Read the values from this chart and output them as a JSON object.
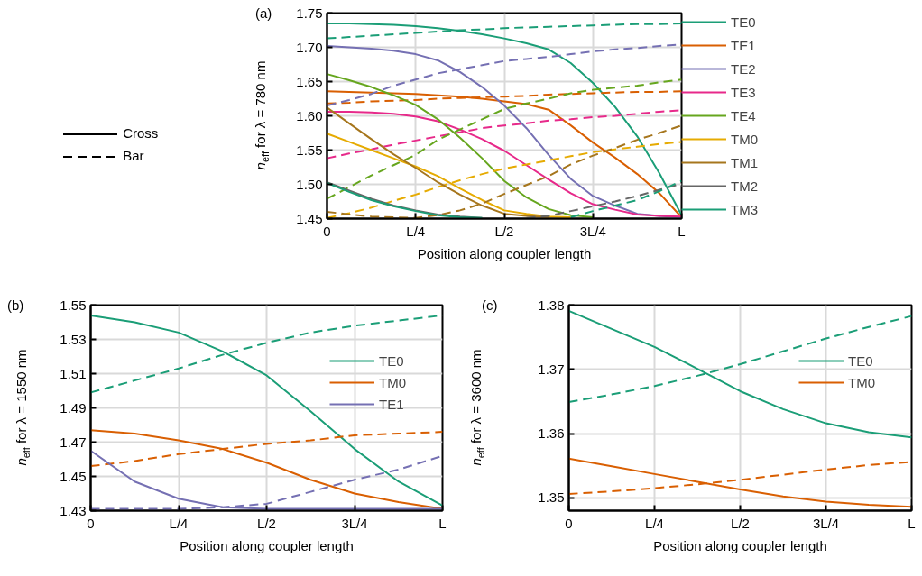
{
  "chart_data": [
    {
      "type": "line",
      "title": "(a)",
      "xlabel": "Position along coupler length",
      "ylabel": "n$_{eff}$ for λ = 780 nm",
      "categories": [
        "0",
        null,
        null,
        null,
        "L/4",
        null,
        null,
        null,
        "L/2",
        null,
        null,
        null,
        "3L/4",
        null,
        null,
        null,
        "L"
      ],
      "ylim": [
        1.45,
        1.75
      ],
      "yticks": [
        1.45,
        {
          "value": 1.5,
          "label": "1.50"
        },
        1.55,
        {
          "value": 1.6,
          "label": "1.60"
        },
        1.65,
        {
          "value": 1.7,
          "label": "1.70"
        },
        1.75
      ],
      "grid": true,
      "legend": "right",
      "annotations": [
        "Cross",
        "Bar"
      ],
      "series": [
        {
          "name": "TE0",
          "color": "#1b9e77",
          "line_style": "solid",
          "values": [
            1.735,
            1.735,
            1.734,
            1.733,
            1.731,
            1.728,
            1.724,
            1.719,
            1.713,
            1.706,
            1.697,
            1.677,
            1.648,
            1.613,
            1.57,
            1.516,
            1.455
          ]
        },
        {
          "color": "#1b9e77",
          "line_style": "dashed",
          "values": [
            1.713,
            1.715,
            1.717,
            1.719,
            1.721,
            1.723,
            1.725,
            1.726,
            1.728,
            1.729,
            1.73,
            1.731,
            1.732,
            1.733,
            1.734,
            1.734,
            1.735
          ]
        },
        {
          "name": "TE1",
          "color": "#d95f02",
          "line_style": "solid",
          "values": [
            1.636,
            1.635,
            1.634,
            1.633,
            1.632,
            1.63,
            1.628,
            1.625,
            1.621,
            1.617,
            1.609,
            1.586,
            1.561,
            1.539,
            1.515,
            1.487,
            1.452
          ]
        },
        {
          "color": "#d95f02",
          "line_style": "dashed",
          "values": [
            1.618,
            1.619,
            1.621,
            1.622,
            1.623,
            1.625,
            1.626,
            1.627,
            1.628,
            1.629,
            1.631,
            1.632,
            1.633,
            1.634,
            1.635,
            1.635,
            1.636
          ]
        },
        {
          "name": "TE2",
          "color": "#7570b3",
          "line_style": "solid",
          "values": [
            1.702,
            1.7,
            1.698,
            1.695,
            1.69,
            1.681,
            1.664,
            1.642,
            1.615,
            1.582,
            1.543,
            1.508,
            1.483,
            1.469,
            1.457,
            1.454,
            1.452
          ]
        },
        {
          "color": "#7570b3",
          "line_style": "dashed",
          "values": [
            1.615,
            1.623,
            1.632,
            1.644,
            1.653,
            1.662,
            1.668,
            1.674,
            1.68,
            1.683,
            1.686,
            1.69,
            1.694,
            1.697,
            1.699,
            1.702,
            1.704
          ]
        },
        {
          "name": "TE3",
          "color": "#e7298a",
          "line_style": "solid",
          "values": [
            1.606,
            1.606,
            1.605,
            1.603,
            1.599,
            1.592,
            1.58,
            1.566,
            1.549,
            1.528,
            1.507,
            1.487,
            1.471,
            1.463,
            1.456,
            1.454,
            1.453
          ]
        },
        {
          "color": "#e7298a",
          "line_style": "dashed",
          "values": [
            1.538,
            1.545,
            1.551,
            1.558,
            1.564,
            1.57,
            1.576,
            1.582,
            1.586,
            1.589,
            1.593,
            1.595,
            1.598,
            1.6,
            1.603,
            1.606,
            1.608
          ]
        },
        {
          "name": "TE4",
          "color": "#66a61e",
          "line_style": "solid",
          "values": [
            1.661,
            1.652,
            1.642,
            1.63,
            1.616,
            1.595,
            1.568,
            1.538,
            1.505,
            1.481,
            1.464,
            1.455,
            1.452,
            null,
            null,
            null,
            null
          ]
        },
        {
          "color": "#66a61e",
          "line_style": "dashed",
          "values": [
            1.479,
            1.496,
            1.513,
            1.528,
            1.543,
            1.565,
            1.58,
            1.595,
            1.61,
            1.618,
            1.625,
            1.633,
            1.638,
            1.641,
            1.644,
            1.649,
            1.653
          ]
        },
        {
          "name": "TM0",
          "color": "#e6ab02",
          "line_style": "solid",
          "values": [
            1.574,
            1.562,
            1.55,
            1.538,
            1.526,
            1.512,
            1.494,
            1.477,
            1.462,
            1.457,
            1.453,
            1.452,
            null,
            null,
            null,
            null,
            null
          ]
        },
        {
          "color": "#e6ab02",
          "line_style": "dashed",
          "values": [
            1.451,
            1.458,
            1.466,
            1.476,
            1.485,
            1.496,
            1.506,
            1.515,
            1.523,
            1.529,
            1.535,
            1.541,
            1.547,
            1.551,
            1.555,
            1.559,
            1.562
          ]
        },
        {
          "name": "TM1",
          "color": "#a6761d",
          "line_style": "solid",
          "values": [
            1.612,
            1.589,
            1.566,
            1.544,
            1.524,
            1.503,
            1.485,
            1.469,
            1.457,
            1.454,
            1.452,
            null,
            null,
            null,
            null,
            null,
            null
          ]
        },
        {
          "color": "#a6761d",
          "line_style": "dashed",
          "values": [
            1.46,
            1.456,
            1.453,
            1.452,
            1.451,
            1.455,
            1.462,
            1.472,
            1.486,
            1.499,
            1.512,
            1.529,
            1.542,
            1.553,
            1.565,
            1.575,
            1.586
          ]
        },
        {
          "name": "TM2",
          "color": "#666666",
          "line_style": "solid",
          "values": [
            1.503,
            1.491,
            1.479,
            1.469,
            1.462,
            1.456,
            1.453,
            1.451,
            null,
            null,
            null,
            null,
            null,
            null,
            null,
            null,
            null
          ]
        },
        {
          "color": "#666666",
          "line_style": "dashed",
          "values": [
            null,
            null,
            null,
            null,
            null,
            null,
            null,
            null,
            null,
            1.451,
            1.454,
            1.461,
            1.468,
            1.475,
            1.483,
            1.492,
            1.501
          ]
        },
        {
          "name": "TM3",
          "color": "#1b9e77",
          "line_style": "solid",
          "values": [
            1.502,
            1.489,
            1.477,
            1.468,
            1.461,
            1.455,
            1.452,
            1.451,
            null,
            null,
            null,
            null,
            null,
            null,
            null,
            null,
            null
          ]
        },
        {
          "color": "#1b9e77",
          "line_style": "dashed",
          "values": [
            null,
            null,
            null,
            null,
            null,
            null,
            null,
            null,
            null,
            null,
            null,
            1.452,
            1.461,
            1.469,
            1.477,
            1.49,
            1.505
          ]
        }
      ]
    },
    {
      "type": "line",
      "title": "(b)",
      "xlabel": "Position along coupler length",
      "ylabel": "n$_{eff}$ for λ = 1550 nm",
      "categories": [
        "0",
        null,
        "L/4",
        null,
        "L/2",
        null,
        "3L/4",
        null,
        "L"
      ],
      "ylim": [
        1.43,
        1.55
      ],
      "yticks": [
        1.43,
        1.45,
        1.47,
        1.49,
        1.51,
        1.53,
        1.55
      ],
      "grid": true,
      "legend": "top right",
      "series": [
        {
          "name": "TE0",
          "color": "#1b9e77",
          "line_style": "solid",
          "values": [
            1.544,
            1.54,
            1.534,
            1.523,
            1.509,
            1.488,
            1.466,
            1.447,
            1.433
          ]
        },
        {
          "color": "#1b9e77",
          "line_style": "dashed",
          "values": [
            1.499,
            1.506,
            1.513,
            1.521,
            1.528,
            1.534,
            1.538,
            1.541,
            1.544
          ]
        },
        {
          "name": "TM0",
          "color": "#d95f02",
          "line_style": "solid",
          "values": [
            1.477,
            1.475,
            1.471,
            1.466,
            1.458,
            1.448,
            1.44,
            1.435,
            1.431
          ]
        },
        {
          "color": "#d95f02",
          "line_style": "dashed",
          "values": [
            1.456,
            1.459,
            1.463,
            1.466,
            1.469,
            1.471,
            1.474,
            1.475,
            1.476
          ]
        },
        {
          "name": "TE1",
          "color": "#7570b3",
          "line_style": "solid",
          "values": [
            1.465,
            1.447,
            1.437,
            1.432,
            1.431,
            1.431,
            1.431,
            1.431,
            1.431
          ]
        },
        {
          "color": "#7570b3",
          "line_style": "dashed",
          "values": [
            1.431,
            1.431,
            1.431,
            1.432,
            1.434,
            1.441,
            1.448,
            1.454,
            1.462
          ]
        }
      ]
    },
    {
      "type": "line",
      "title": "(c)",
      "xlabel": "Position along coupler length",
      "ylabel": "n$_{eff}$ for λ = 3600 nm",
      "categories": [
        "0",
        null,
        "L/4",
        null,
        "L/2",
        null,
        "3L/4",
        null,
        "L"
      ],
      "ylim": [
        1.348,
        1.38
      ],
      "yticks": [
        1.35,
        1.36,
        1.37,
        1.38
      ],
      "grid": true,
      "legend": "top right",
      "series": [
        {
          "name": "TE0",
          "color": "#1b9e77",
          "line_style": "solid",
          "values": [
            1.3791,
            1.3763,
            1.3735,
            1.3701,
            1.3666,
            1.3638,
            1.3616,
            1.3602,
            1.3594
          ]
        },
        {
          "color": "#1b9e77",
          "line_style": "dashed",
          "values": [
            1.3649,
            1.3661,
            1.3674,
            1.369,
            1.3708,
            1.3728,
            1.3748,
            1.3766,
            1.3783
          ]
        },
        {
          "name": "TM0",
          "color": "#d95f02",
          "line_style": "solid",
          "values": [
            1.3561,
            1.3549,
            1.3537,
            1.3525,
            1.3513,
            1.3502,
            1.3494,
            1.3489,
            1.3486
          ]
        },
        {
          "color": "#d95f02",
          "line_style": "dashed",
          "values": [
            1.3506,
            1.351,
            1.3515,
            1.3521,
            1.3528,
            1.3536,
            1.3544,
            1.3551,
            1.3556
          ]
        }
      ]
    }
  ]
}
